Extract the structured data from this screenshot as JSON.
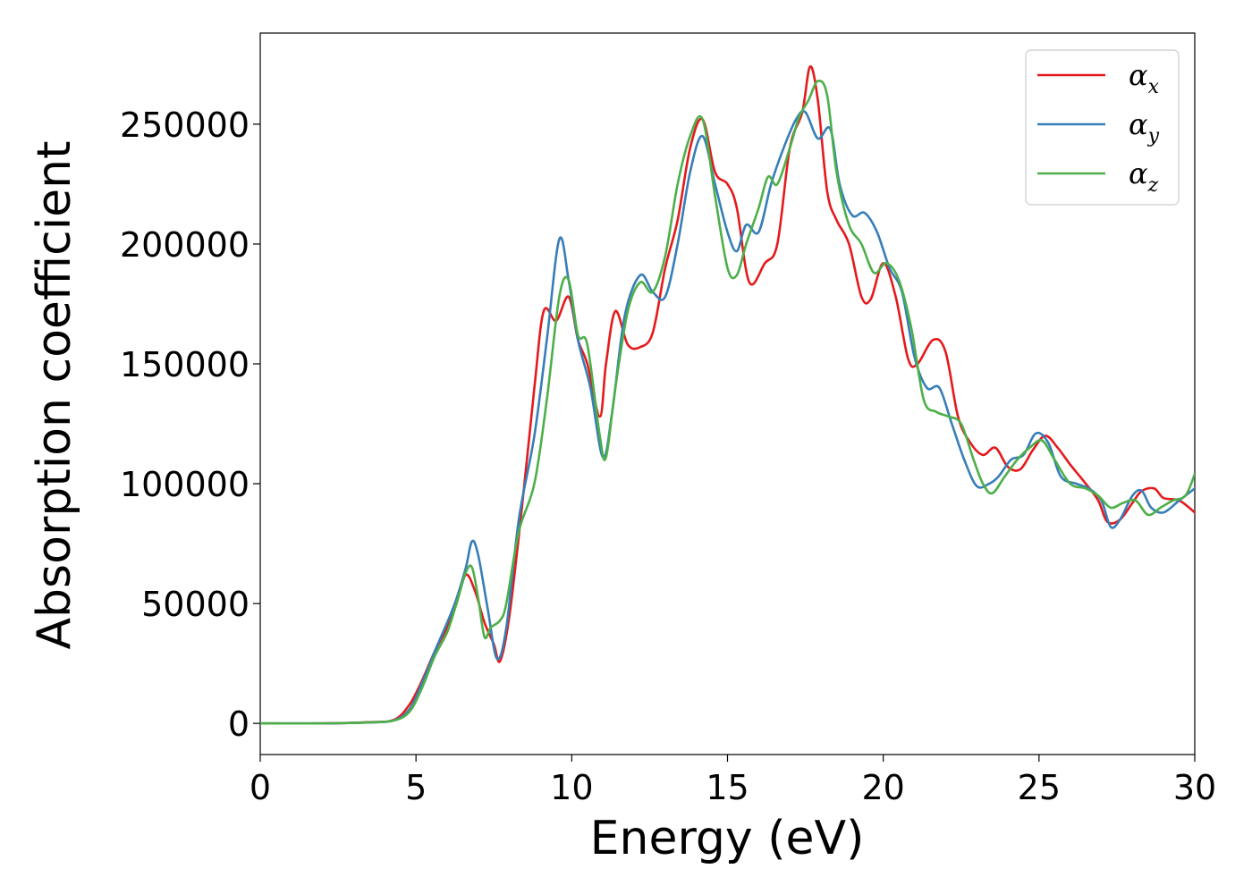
{
  "chart_data": {
    "type": "line",
    "title": "",
    "xlabel": "Energy (eV)",
    "ylabel": "Absorption coefficient",
    "xlim": [
      0,
      30
    ],
    "ylim": [
      -13000,
      288000
    ],
    "xticks": [
      0,
      5,
      10,
      15,
      20,
      25,
      30
    ],
    "xtick_labels": [
      "0",
      "5",
      "10",
      "15",
      "20",
      "25",
      "30"
    ],
    "yticks": [
      0,
      50000,
      100000,
      150000,
      200000,
      250000
    ],
    "ytick_labels": [
      "0",
      "50000",
      "100000",
      "150000",
      "200000",
      "250000"
    ],
    "grid": false,
    "legend_position": "top-right",
    "series": [
      {
        "name": "α_x",
        "symbol": "α",
        "subscript": "x",
        "color": "#e41a1c",
        "x": [
          0,
          2,
          3.5,
          4.3,
          4.8,
          5.2,
          5.6,
          6.0,
          6.3,
          6.6,
          6.9,
          7.2,
          7.5,
          7.7,
          8.0,
          8.4,
          8.8,
          9.1,
          9.5,
          9.9,
          10.2,
          10.5,
          10.9,
          11.1,
          11.4,
          11.8,
          12.2,
          12.6,
          13.0,
          13.4,
          13.8,
          14.2,
          14.6,
          15.0,
          15.3,
          15.7,
          16.2,
          16.6,
          17.0,
          17.4,
          17.65,
          17.9,
          18.2,
          18.5,
          18.9,
          19.3,
          19.6,
          20.0,
          20.4,
          20.8,
          21.1,
          21.6,
          22.0,
          22.4,
          22.8,
          23.2,
          23.6,
          24.0,
          24.4,
          24.8,
          25.2,
          25.6,
          26.0,
          26.5,
          26.9,
          27.2,
          27.6,
          28.0,
          28.3,
          28.7,
          29.0,
          29.5,
          30.0
        ],
        "y": [
          0,
          0,
          500,
          1500,
          8000,
          18000,
          30000,
          40000,
          50000,
          62000,
          55000,
          42000,
          33000,
          26000,
          45000,
          90000,
          140000,
          172000,
          168000,
          178000,
          160000,
          150000,
          128000,
          150000,
          172000,
          158000,
          157000,
          163000,
          190000,
          210000,
          240000,
          252000,
          230000,
          225000,
          215000,
          184000,
          192000,
          200000,
          240000,
          255000,
          274000,
          260000,
          222000,
          210000,
          200000,
          178000,
          177000,
          192000,
          178000,
          152000,
          150000,
          160000,
          155000,
          128000,
          117000,
          112000,
          115000,
          107000,
          106000,
          114000,
          120000,
          115000,
          108000,
          100000,
          93000,
          84000,
          85000,
          92000,
          97000,
          98000,
          94000,
          93000,
          88000
        ]
      },
      {
        "name": "α_y",
        "symbol": "α",
        "subscript": "y",
        "color": "#377eb8",
        "x": [
          0,
          2,
          3.5,
          4.3,
          4.8,
          5.2,
          5.6,
          6.0,
          6.3,
          6.6,
          6.8,
          7.0,
          7.3,
          7.6,
          7.9,
          8.3,
          8.8,
          9.2,
          9.6,
          9.9,
          10.2,
          10.6,
          11.0,
          11.3,
          11.7,
          12.2,
          12.6,
          13.0,
          13.4,
          13.8,
          14.2,
          14.6,
          15.0,
          15.3,
          15.6,
          16.0,
          16.4,
          16.8,
          17.2,
          17.5,
          17.9,
          18.3,
          18.6,
          19.0,
          19.4,
          19.8,
          20.2,
          20.6,
          21.0,
          21.4,
          21.8,
          22.2,
          22.6,
          23.0,
          23.4,
          23.7,
          24.1,
          24.5,
          24.9,
          25.3,
          25.7,
          26.2,
          26.6,
          27.0,
          27.3,
          27.6,
          28.0,
          28.3,
          28.6,
          29.0,
          29.5,
          30.0
        ],
        "y": [
          0,
          0,
          400,
          1300,
          6000,
          17000,
          30000,
          42000,
          52000,
          65000,
          76000,
          70000,
          48000,
          27000,
          40000,
          85000,
          120000,
          160000,
          202000,
          185000,
          160000,
          140000,
          111000,
          130000,
          170000,
          187000,
          180000,
          178000,
          200000,
          230000,
          245000,
          225000,
          205000,
          197000,
          208000,
          205000,
          225000,
          240000,
          252000,
          255000,
          244000,
          248000,
          225000,
          212000,
          213000,
          205000,
          190000,
          180000,
          153000,
          140000,
          140000,
          125000,
          110000,
          99000,
          100000,
          103000,
          110000,
          112000,
          121000,
          117000,
          103000,
          100000,
          98000,
          93000,
          82000,
          85000,
          95000,
          97000,
          90000,
          88000,
          93000,
          98000
        ]
      },
      {
        "name": "α_z",
        "symbol": "α",
        "subscript": "z",
        "color": "#4daf4a",
        "x": [
          0,
          2,
          3.5,
          4.3,
          4.8,
          5.2,
          5.6,
          6.0,
          6.3,
          6.6,
          6.8,
          7.0,
          7.2,
          7.4,
          7.7,
          7.9,
          8.3,
          8.8,
          9.2,
          9.6,
          9.9,
          10.2,
          10.5,
          10.9,
          11.1,
          11.4,
          11.8,
          12.2,
          12.6,
          13.0,
          13.4,
          13.8,
          14.2,
          14.6,
          15.0,
          15.3,
          15.6,
          16.0,
          16.3,
          16.6,
          17.0,
          17.3,
          17.6,
          17.9,
          18.2,
          18.5,
          18.9,
          19.3,
          19.7,
          20.1,
          20.5,
          20.9,
          21.3,
          21.7,
          22.1,
          22.5,
          22.9,
          23.2,
          23.5,
          23.9,
          24.3,
          24.7,
          25.1,
          25.5,
          26.0,
          26.5,
          26.9,
          27.3,
          27.7,
          28.1,
          28.5,
          28.9,
          29.3,
          29.7,
          30.0
        ],
        "y": [
          0,
          0,
          400,
          1200,
          5000,
          15000,
          28000,
          38000,
          50000,
          63000,
          65000,
          52000,
          36000,
          40000,
          43000,
          50000,
          80000,
          100000,
          135000,
          178000,
          185000,
          162000,
          158000,
          120000,
          111000,
          140000,
          172000,
          184000,
          180000,
          195000,
          225000,
          245000,
          252000,
          220000,
          190000,
          187000,
          200000,
          215000,
          228000,
          225000,
          240000,
          253000,
          260000,
          268000,
          262000,
          230000,
          208000,
          200000,
          188000,
          192000,
          185000,
          165000,
          135000,
          130000,
          128000,
          125000,
          110000,
          100000,
          96000,
          103000,
          110000,
          115000,
          118000,
          110000,
          100000,
          98000,
          95000,
          90000,
          92000,
          93000,
          87000,
          90000,
          93000,
          95000,
          104000
        ]
      }
    ]
  }
}
